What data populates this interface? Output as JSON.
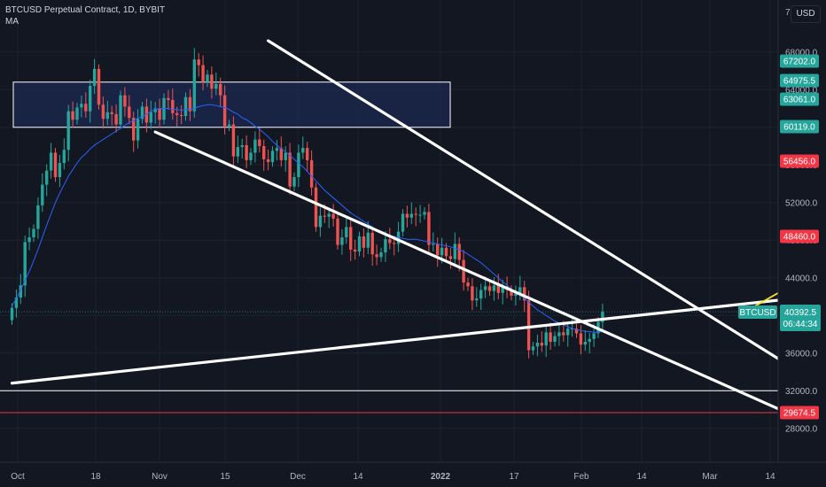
{
  "header": {
    "title": "BTCUSD Perpetual Contract, 1D, BYBIT",
    "indicator": "MA"
  },
  "currency_button": "USD",
  "colors": {
    "background": "#131722",
    "up_candle": "#26a69a",
    "down_candle": "#ef5350",
    "ma_line": "#2962ff",
    "trendline": "#ffffff",
    "projection": "#f5e61e",
    "highlight_box_fill": "#1c2a52",
    "support_line": "#ffffff",
    "low_line": "#f23645"
  },
  "chart_data": {
    "type": "candlestick",
    "symbol": "BTCUSD",
    "interval": "1D",
    "ylim": [
      26000,
      72000
    ],
    "y_axis_ticks": [
      28000,
      32000,
      36000,
      40000,
      44000,
      48000,
      52000,
      56000,
      60000,
      64000,
      68000
    ],
    "y_axis_partial_top_label": "72",
    "x_axis_ticks": [
      "Oct",
      "18",
      "Nov",
      "15",
      "Dec",
      "14",
      "2022",
      "17",
      "Feb",
      "14",
      "Mar",
      "14"
    ],
    "price_labels": [
      {
        "value": "67202.0",
        "color": "#26a69a"
      },
      {
        "value": "64975.5",
        "color": "#26a69a"
      },
      {
        "value": "63061.0",
        "color": "#26a69a"
      },
      {
        "value": "60119.0",
        "color": "#26a69a"
      },
      {
        "value": "56456.0",
        "color": "#f23645"
      },
      {
        "value": "48460.0",
        "color": "#f23645"
      },
      {
        "value": "29674.5",
        "color": "#f23645"
      }
    ],
    "current_price": {
      "symbol": "BTCUSD",
      "value": "40392.5",
      "countdown": "06:44:34"
    },
    "horizontal_levels": [
      32000,
      29674.5
    ],
    "highlight_zone": {
      "from_price": 60000,
      "to_price": 64800
    },
    "closes": [
      40800,
      41900,
      43200,
      47800,
      48300,
      49200,
      51700,
      53900,
      55400,
      57300,
      54700,
      56200,
      57600,
      61700,
      60800,
      62100,
      62500,
      61700,
      64400,
      66200,
      62400,
      60900,
      61600,
      61400,
      60300,
      63400,
      62200,
      61000,
      58600,
      60900,
      62200,
      60500,
      61600,
      62000,
      60800,
      63100,
      62900,
      61500,
      61300,
      61200,
      63200,
      61700,
      67200,
      66600,
      64800,
      65600,
      64100,
      64600,
      63400,
      60100,
      60300,
      56900,
      57900,
      58100,
      56500,
      57300,
      58700,
      58000,
      56600,
      56300,
      57500,
      57800,
      56500,
      57300,
      53700,
      54700,
      57300,
      57800,
      56500,
      53600,
      49400,
      50600,
      50500,
      50800,
      50300,
      47500,
      48300,
      49400,
      47000,
      46800,
      48400,
      47200,
      48800,
      46500,
      46200,
      46700,
      48100,
      47700,
      47600,
      48900,
      50800,
      50400,
      50800,
      50700,
      50700,
      51000,
      47500,
      47600,
      46400,
      47200,
      46300,
      46000,
      47600,
      45900,
      43500,
      43100,
      41600,
      41800,
      42700,
      43100,
      42600,
      43200,
      42400,
      43100,
      42700,
      42100,
      42300,
      43000,
      41600,
      36300,
      36700,
      37100,
      36800,
      38200,
      37200,
      37800,
      38200,
      37900,
      38600,
      38600,
      38100,
      36900,
      37200,
      37500,
      38100,
      39300,
      40392.5
    ],
    "ma_values": [
      41000,
      41800,
      42700,
      43700,
      44700,
      45800,
      47000,
      48300,
      49600,
      50800,
      52000,
      53000,
      53900,
      54800,
      55500,
      56200,
      56800,
      57200,
      57700,
      58100,
      58400,
      58700,
      59000,
      59300,
      59600,
      59900,
      60200,
      60500,
      60700,
      61000,
      61100,
      61400,
      61700,
      61900,
      62000,
      62000,
      62000,
      61900,
      61900,
      61800,
      61900,
      61900,
      62000,
      62200,
      62300,
      62400,
      62400,
      62300,
      62200,
      62100,
      61900,
      61600,
      61400,
      61000,
      60800,
      60500,
      60100,
      59800,
      59400,
      59000,
      58500,
      58100,
      57700,
      57400,
      57000,
      56600,
      56200,
      55800,
      55300,
      54800,
      54300,
      53800,
      53300,
      52900,
      52500,
      52100,
      51700,
      51300,
      50900,
      50600,
      50300,
      50000,
      49700,
      49400,
      49100,
      48900,
      48700,
      48500,
      48400,
      48300,
      48200,
      48100,
      48100,
      48100,
      48000,
      47900,
      47800,
      47700,
      47600,
      47500,
      47400,
      47300,
      47100,
      47000,
      46800,
      46500,
      46200,
      45900,
      45600,
      45200,
      44800,
      44400,
      44000,
      43600,
      43200,
      42800,
      42500,
      42200,
      41800,
      41400,
      41000,
      40600,
      40300,
      40000,
      39700,
      39400,
      39200,
      39000,
      38800,
      38600,
      38500,
      38400,
      38300,
      38300,
      38200,
      38200,
      38300
    ],
    "trendlines": [
      {
        "name": "channel-upper",
        "from": {
          "bar": 59,
          "price": 69200
        },
        "to": {
          "bar": 198,
          "price": 29200
        }
      },
      {
        "name": "channel-lower",
        "from": {
          "bar": 33,
          "price": 59500
        },
        "to": {
          "bar": 190,
          "price": 27300
        }
      },
      {
        "name": "rising-trendline",
        "from": {
          "bar": 0,
          "price": 32800
        },
        "to": {
          "bar": 220,
          "price": 43800
        }
      }
    ],
    "projection_path": [
      {
        "bar": 170,
        "price": 40700
      },
      {
        "bar": 178,
        "price": 42800
      },
      {
        "bar": 186,
        "price": 41000
      },
      {
        "bar": 189,
        "price": 51500
      }
    ]
  }
}
